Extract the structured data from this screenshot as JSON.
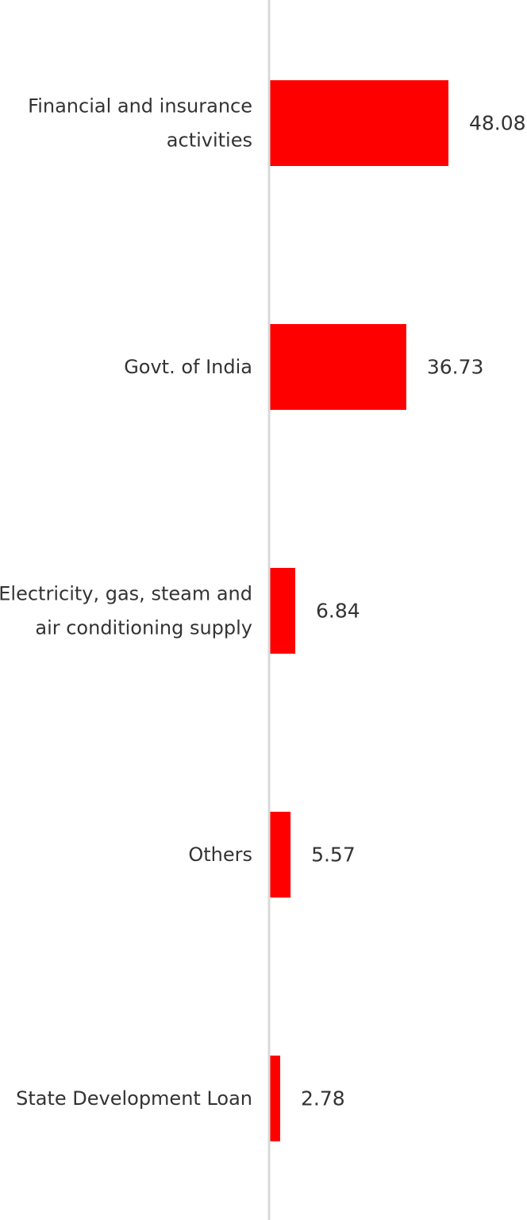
{
  "chart_data": {
    "type": "bar",
    "orientation": "horizontal",
    "categories": [
      [
        "Financial and insurance",
        "activities"
      ],
      [
        "Govt. of India"
      ],
      [
        "Electricity, gas, steam and",
        "air conditioning supply"
      ],
      [
        "Others"
      ],
      [
        "State Development Loan"
      ]
    ],
    "values": [
      48.08,
      36.73,
      6.84,
      5.57,
      2.78
    ],
    "value_labels": [
      "48.08",
      "36.73",
      "6.84",
      "5.57",
      "2.78"
    ],
    "title": "",
    "xlabel": "",
    "ylabel": "",
    "xlim": [
      0,
      50
    ],
    "grid": false,
    "legend": "none",
    "colors": {
      "bar": "#ff0000",
      "axis": "#d9d9d9",
      "text": "#333333"
    }
  }
}
